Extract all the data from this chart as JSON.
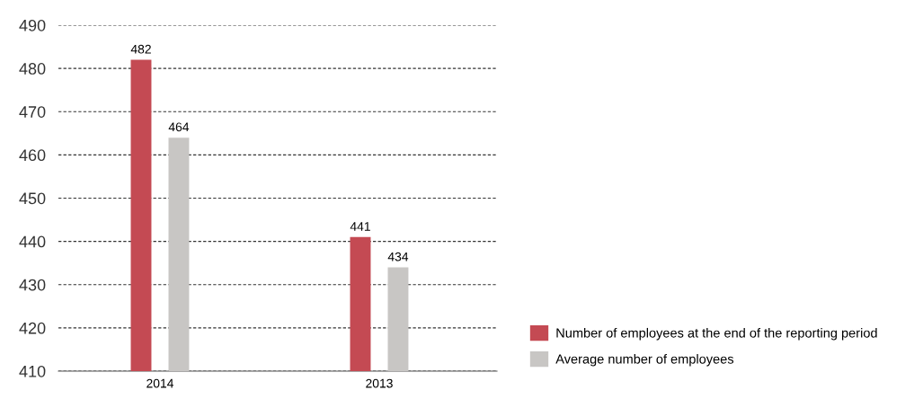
{
  "chart_data": {
    "type": "bar",
    "categories": [
      "2014",
      "2013"
    ],
    "series": [
      {
        "name": "Number of employees at the end of the reporting period",
        "color": "#c44a53",
        "values": [
          482,
          441
        ]
      },
      {
        "name": "Average number of employees",
        "color": "#c8c6c4",
        "values": [
          464,
          434
        ]
      }
    ],
    "ylim": [
      410,
      490
    ],
    "yticks": [
      410,
      420,
      430,
      440,
      450,
      460,
      470,
      480,
      490
    ],
    "grid": "y",
    "legend": "bottom right",
    "data_labels": true
  }
}
